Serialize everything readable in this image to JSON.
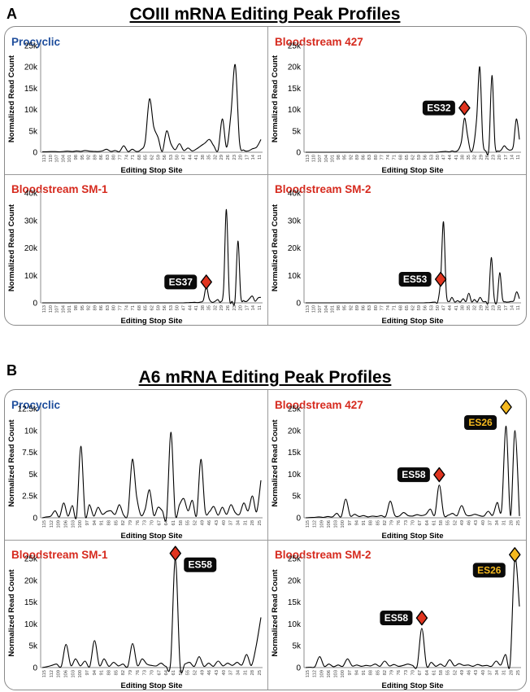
{
  "figure": {
    "panels": [
      {
        "label": "A",
        "title": "COIII mRNA Editing Peak Profiles"
      },
      {
        "label": "B",
        "title": "A6 mRNA Editing Peak Profiles"
      }
    ]
  },
  "colors": {
    "procyclic": "#1f4e9c",
    "bloodstream": "#d62a1e",
    "marker_red": "#e0341f",
    "marker_gold": "#f5b91f",
    "tag_bg": "#0a0a0a",
    "line": "#000000",
    "axis": "#8c8c8c"
  },
  "chart_data": [
    {
      "type": "line",
      "panel": "A",
      "title": "Procyclic",
      "title_color": "#1f4e9c",
      "xlabel": "Editing Stop Site",
      "ylabel": "Normalized Read Count",
      "ylim": [
        0,
        25000
      ],
      "yticks": [
        0,
        5000,
        10000,
        15000,
        20000,
        25000
      ],
      "yticklabels": [
        "0",
        "5k",
        "10k",
        "15k",
        "20k",
        "25k"
      ],
      "xticklabels": [
        "113",
        "110",
        "107",
        "104",
        "101",
        "98",
        "95",
        "92",
        "89",
        "86",
        "83",
        "80",
        "77",
        "74",
        "71",
        "68",
        "65",
        "62",
        "59",
        "56",
        "53",
        "50",
        "47",
        "44",
        "41",
        "38",
        "35",
        "32",
        "29",
        "26",
        "23",
        "20",
        "17",
        "14",
        "11"
      ],
      "series": [
        {
          "values": [
            100,
            120,
            150,
            150,
            100,
            200,
            250,
            150,
            300,
            200,
            400,
            250,
            200,
            150,
            300,
            700,
            200,
            400,
            150,
            1500,
            150,
            700,
            150,
            600,
            2500,
            12500,
            6000,
            3500,
            200,
            5000,
            2000,
            600,
            2000,
            400,
            1000,
            300,
            800,
            1500,
            2200,
            3000,
            1500,
            500,
            7800,
            1200,
            9000,
            20500,
            2500,
            500,
            300,
            800,
            1200,
            3000
          ]
        }
      ],
      "markers": []
    },
    {
      "type": "line",
      "panel": "A",
      "title": "Bloodstream 427",
      "title_color": "#d62a1e",
      "xlabel": "Editing Stop Site",
      "ylabel": "Normalized Read Count",
      "ylim": [
        0,
        25000
      ],
      "yticks": [
        0,
        5000,
        10000,
        15000,
        20000,
        25000
      ],
      "yticklabels": [
        "0",
        "5k",
        "10k",
        "15k",
        "20k",
        "25k"
      ],
      "xticklabels": [
        "113",
        "110",
        "107",
        "104",
        "101",
        "98",
        "95",
        "92",
        "89",
        "86",
        "83",
        "80",
        "77",
        "74",
        "71",
        "68",
        "65",
        "62",
        "59",
        "56",
        "53",
        "50",
        "47",
        "44",
        "41",
        "38",
        "35",
        "32",
        "29",
        "26",
        "23",
        "20",
        "17",
        "14",
        "11"
      ],
      "series": [
        {
          "values": [
            0,
            0,
            0,
            0,
            0,
            0,
            0,
            0,
            0,
            0,
            0,
            0,
            0,
            0,
            0,
            0,
            0,
            0,
            0,
            0,
            0,
            0,
            0,
            0,
            0,
            0,
            0,
            0,
            0,
            0,
            0,
            0,
            0,
            0,
            0,
            0,
            0,
            0,
            0,
            0,
            0,
            0,
            0,
            0,
            100,
            150,
            200,
            100,
            300,
            150,
            600,
            2500,
            8000,
            4000,
            300,
            1500,
            8000,
            20000,
            3000,
            300,
            1000,
            18000,
            2000,
            300,
            500,
            1500,
            800,
            500,
            1500,
            7800,
            3000
          ]
        }
      ],
      "markers": [
        {
          "label": "ES32",
          "x_index": 52,
          "value": 10000,
          "color": "red"
        }
      ]
    },
    {
      "type": "line",
      "panel": "A",
      "title": "Bloodstream SM-1",
      "title_color": "#d62a1e",
      "xlabel": "Editing Stop Site",
      "ylabel": "Normalized Read Count",
      "ylim": [
        0,
        40000
      ],
      "yticks": [
        0,
        10000,
        20000,
        30000,
        40000
      ],
      "yticklabels": [
        "0",
        "10k",
        "20k",
        "30k",
        "40k"
      ],
      "xticklabels": [
        "113",
        "110",
        "107",
        "104",
        "101",
        "98",
        "95",
        "92",
        "89",
        "86",
        "83",
        "80",
        "77",
        "74",
        "71",
        "68",
        "65",
        "62",
        "59",
        "56",
        "53",
        "50",
        "47",
        "44",
        "41",
        "38",
        "35",
        "32",
        "29",
        "26",
        "23",
        "20",
        "17",
        "14",
        "11"
      ],
      "series": [
        {
          "values": [
            0,
            0,
            0,
            0,
            0,
            0,
            0,
            0,
            0,
            0,
            0,
            0,
            0,
            0,
            0,
            0,
            0,
            0,
            0,
            0,
            0,
            0,
            0,
            0,
            0,
            0,
            0,
            0,
            0,
            0,
            0,
            0,
            0,
            0,
            0,
            0,
            0,
            0,
            0,
            0,
            0,
            0,
            0,
            0,
            0,
            0,
            0,
            0,
            0,
            0,
            50,
            100,
            150,
            200,
            100,
            300,
            1000,
            6000,
            1500,
            200,
            500,
            1200,
            300,
            5000,
            34000,
            3000,
            500,
            1000,
            22500,
            2500,
            800,
            500,
            1500,
            2500,
            600,
            1800,
            2000
          ]
        }
      ],
      "markers": [
        {
          "label": "ES37",
          "x_index": 57,
          "value": 7000,
          "color": "red"
        }
      ]
    },
    {
      "type": "line",
      "panel": "A",
      "title": "Bloodstream SM-2",
      "title_color": "#d62a1e",
      "xlabel": "Editing Stop Site",
      "ylabel": "Normalized Read Count",
      "ylim": [
        0,
        40000
      ],
      "yticks": [
        0,
        10000,
        20000,
        30000,
        40000
      ],
      "yticklabels": [
        "0",
        "10k",
        "20k",
        "30k",
        "40k"
      ],
      "xticklabels": [
        "113",
        "110",
        "107",
        "104",
        "101",
        "98",
        "95",
        "92",
        "89",
        "86",
        "83",
        "80",
        "77",
        "74",
        "71",
        "68",
        "65",
        "62",
        "59",
        "56",
        "53",
        "50",
        "47",
        "44",
        "41",
        "38",
        "35",
        "32",
        "29",
        "26",
        "23",
        "20",
        "17",
        "14",
        "11"
      ],
      "series": [
        {
          "values": [
            0,
            0,
            0,
            0,
            0,
            0,
            0,
            0,
            0,
            0,
            0,
            0,
            0,
            0,
            0,
            0,
            0,
            0,
            0,
            0,
            0,
            0,
            0,
            0,
            0,
            0,
            0,
            0,
            0,
            0,
            0,
            0,
            0,
            0,
            0,
            0,
            0,
            0,
            0,
            0,
            0,
            0,
            0,
            50,
            100,
            200,
            300,
            500,
            9000,
            29500,
            4000,
            500,
            2000,
            300,
            800,
            300,
            1500,
            500,
            3500,
            400,
            1200,
            300,
            2000,
            500,
            500,
            700,
            16500,
            2000,
            500,
            11000,
            1500,
            400,
            300,
            500,
            800,
            4000,
            1500
          ]
        }
      ],
      "markers": [
        {
          "label": "ES53",
          "x_index": 48,
          "value": 8000,
          "color": "red"
        }
      ]
    },
    {
      "type": "line",
      "panel": "B",
      "title": "Procyclic",
      "title_color": "#1f4e9c",
      "xlabel": "Editing Stop Site",
      "ylabel": "Normalized Read Count",
      "ylim": [
        0,
        12500
      ],
      "yticks": [
        0,
        2500,
        5000,
        7500,
        10000,
        12500
      ],
      "yticklabels": [
        "0",
        "2.5k",
        "5k",
        "7.5k",
        "10k",
        "12.5k"
      ],
      "xticklabels": [
        "115",
        "112",
        "109",
        "106",
        "103",
        "100",
        "97",
        "94",
        "91",
        "88",
        "85",
        "82",
        "79",
        "76",
        "73",
        "70",
        "67",
        "64",
        "61",
        "58",
        "55",
        "52",
        "49",
        "46",
        "43",
        "40",
        "37",
        "34",
        "31",
        "28",
        "25"
      ],
      "series": [
        {
          "values": [
            0,
            100,
            200,
            800,
            100,
            1700,
            200,
            1400,
            200,
            8200,
            300,
            1500,
            200,
            1200,
            400,
            700,
            800,
            400,
            1500,
            300,
            600,
            6700,
            2500,
            300,
            1000,
            3200,
            300,
            1200,
            800,
            200,
            9800,
            500,
            1500,
            2200,
            800,
            2000,
            300,
            6700,
            800,
            700,
            1300,
            300,
            1200,
            400,
            1500,
            600,
            400,
            1700,
            800,
            2500,
            700,
            4300
          ]
        }
      ],
      "markers": []
    },
    {
      "type": "line",
      "panel": "B",
      "title": "Bloodstream 427",
      "title_color": "#d62a1e",
      "xlabel": "Editing Stop Site",
      "ylabel": "Normalized Read Count",
      "ylim": [
        0,
        25000
      ],
      "yticks": [
        0,
        5000,
        10000,
        15000,
        20000,
        25000
      ],
      "yticklabels": [
        "0",
        "5k",
        "10k",
        "15k",
        "20k",
        "25k"
      ],
      "xticklabels": [
        "115",
        "112",
        "109",
        "106",
        "103",
        "100",
        "97",
        "94",
        "91",
        "88",
        "85",
        "82",
        "79",
        "76",
        "73",
        "70",
        "67",
        "64",
        "61",
        "58",
        "55",
        "52",
        "49",
        "46",
        "43",
        "40",
        "37",
        "34",
        "31",
        "28",
        "25"
      ],
      "series": [
        {
          "values": [
            0,
            50,
            100,
            200,
            100,
            300,
            200,
            1000,
            300,
            4300,
            500,
            800,
            300,
            500,
            200,
            400,
            300,
            500,
            400,
            3800,
            600,
            400,
            1200,
            500,
            400,
            700,
            500,
            800,
            2000,
            700,
            7500,
            800,
            600,
            1000,
            500,
            2800,
            700,
            500,
            800,
            500,
            400,
            1500,
            600,
            3500,
            2000,
            21000,
            500,
            20000,
            400
          ]
        }
      ],
      "markers": [
        {
          "label": "ES58",
          "x_index": 30,
          "value": 9500,
          "color": "red"
        },
        {
          "label": "ES26",
          "x_index": 45,
          "value": 25000,
          "color": "gold"
        }
      ]
    },
    {
      "type": "line",
      "panel": "B",
      "title": "Bloodstream SM-1",
      "title_color": "#d62a1e",
      "xlabel": "Editing Stop Site",
      "ylabel": "Normalized Read Count",
      "ylim": [
        0,
        25000
      ],
      "yticks": [
        0,
        5000,
        10000,
        15000,
        20000,
        25000
      ],
      "yticklabels": [
        "0",
        "5k",
        "10k",
        "15k",
        "20k",
        "25k"
      ],
      "xticklabels": [
        "115",
        "112",
        "109",
        "106",
        "103",
        "100",
        "97",
        "94",
        "91",
        "88",
        "85",
        "82",
        "79",
        "76",
        "73",
        "70",
        "67",
        "64",
        "61",
        "58",
        "55",
        "52",
        "49",
        "46",
        "43",
        "40",
        "37",
        "34",
        "31",
        "28",
        "25"
      ],
      "series": [
        {
          "values": [
            0,
            200,
            500,
            800,
            300,
            5300,
            500,
            2000,
            400,
            1500,
            300,
            6200,
            500,
            2000,
            300,
            1200,
            400,
            800,
            300,
            5500,
            500,
            2000,
            800,
            500,
            400,
            1000,
            300,
            1200,
            25000,
            500,
            800,
            1200,
            300,
            2500,
            300,
            1000,
            300,
            1500,
            400,
            1000,
            500,
            1200,
            600,
            3000,
            500,
            5000,
            11500
          ]
        }
      ],
      "markers": [
        {
          "label": "ES58",
          "x_index": 28,
          "value": 25800,
          "color": "red"
        }
      ]
    },
    {
      "type": "line",
      "panel": "B",
      "title": "Bloodstream SM-2",
      "title_color": "#d62a1e",
      "xlabel": "Editing Stop Site",
      "ylabel": "Normalized Read Count",
      "ylim": [
        0,
        25000
      ],
      "yticks": [
        0,
        5000,
        10000,
        15000,
        20000,
        25000
      ],
      "yticklabels": [
        "0",
        "5k",
        "10k",
        "15k",
        "20k",
        "25k"
      ],
      "xticklabels": [
        "115",
        "112",
        "109",
        "106",
        "103",
        "100",
        "97",
        "94",
        "91",
        "88",
        "85",
        "82",
        "79",
        "76",
        "73",
        "70",
        "67",
        "64",
        "61",
        "58",
        "55",
        "52",
        "49",
        "46",
        "43",
        "40",
        "37",
        "34",
        "31",
        "28",
        "25"
      ],
      "series": [
        {
          "values": [
            0,
            100,
            200,
            2500,
            300,
            800,
            200,
            600,
            300,
            2000,
            400,
            600,
            300,
            500,
            400,
            800,
            300,
            1500,
            400,
            700,
            300,
            500,
            800,
            500,
            400,
            9000,
            500,
            1200,
            300,
            800,
            300,
            1800,
            400,
            900,
            500,
            600,
            300,
            700,
            400,
            500,
            300,
            1500,
            600,
            3000,
            1000,
            25000,
            14000
          ]
        }
      ],
      "markers": [
        {
          "label": "ES58",
          "x_index": 25,
          "value": 11000,
          "color": "red"
        },
        {
          "label": "ES26",
          "x_index": 45,
          "value": 25500,
          "color": "gold"
        }
      ]
    }
  ]
}
